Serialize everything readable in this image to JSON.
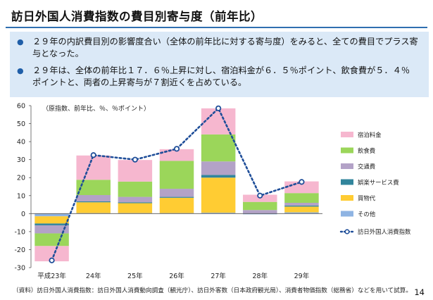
{
  "slide": {
    "title": "訪日外国人消費指数の費目別寄与度（前年比）",
    "bullets": [
      "２９年の内訳費目別の影響度合い（全体の前年比に対する寄与度）をみると、全ての費目でプラス寄与となった。",
      "２９年は、全体の前年比１７．６％上昇に対し、宿泊料金が６．５％ポイント、飲食費が５．４％ポイントと、両者の上昇寄与が７割近くを占めている。"
    ],
    "source_note": "（資料）訪日外国人消費指数：訪日外国人消費動向調査（観光庁）、訪日外客数（日本政府観光局）、消費者物価指数（総務省）などを用いて試算。",
    "page_number": "14",
    "bullet_color": "#1f5ea8",
    "rule_color": "#2f6fb0"
  },
  "chart_data": {
    "type": "bar",
    "stacked": true,
    "unit_note": "（原指数、前年比、％、％ポイント）",
    "categories": [
      "平成23年",
      "24年",
      "25年",
      "26年",
      "27年",
      "28年",
      "29年"
    ],
    "ylim": [
      -30,
      60
    ],
    "yticks": [
      -30,
      -20,
      -10,
      0,
      10,
      20,
      30,
      40,
      50,
      60
    ],
    "series": [
      {
        "name": "その他",
        "color": "#8fb4e3",
        "values": [
          -1.5,
          0.3,
          0.3,
          0.3,
          0.5,
          -0.4,
          0.7
        ]
      },
      {
        "name": "買物代",
        "color": "#ffcc33",
        "values": [
          -4.0,
          6.0,
          5.5,
          8.5,
          19.5,
          0.0,
          3.2
        ]
      },
      {
        "name": "娯楽サービス費",
        "color": "#31859c",
        "values": [
          -1.0,
          0.5,
          0.5,
          0.5,
          1.5,
          0.0,
          0.6
        ]
      },
      {
        "name": "交通費",
        "color": "#b3a2c7",
        "values": [
          -4.5,
          3.5,
          3.0,
          4.5,
          7.5,
          2.0,
          1.5
        ]
      },
      {
        "name": "飲食費",
        "color": "#9bd65a",
        "values": [
          -7.0,
          8.5,
          8.5,
          15.5,
          15.0,
          4.5,
          5.4
        ]
      },
      {
        "name": "宿泊料金",
        "color": "#f6b7cf",
        "values": [
          -8.5,
          13.5,
          12.0,
          6.5,
          14.5,
          4.0,
          6.5
        ]
      }
    ],
    "line": {
      "name": "訪日外国人消費指数",
      "color": "#1f4e99",
      "values": [
        -26.0,
        32.5,
        30.0,
        36.0,
        58.5,
        10.0,
        17.6
      ]
    },
    "legend_position": "right",
    "grid": false
  }
}
